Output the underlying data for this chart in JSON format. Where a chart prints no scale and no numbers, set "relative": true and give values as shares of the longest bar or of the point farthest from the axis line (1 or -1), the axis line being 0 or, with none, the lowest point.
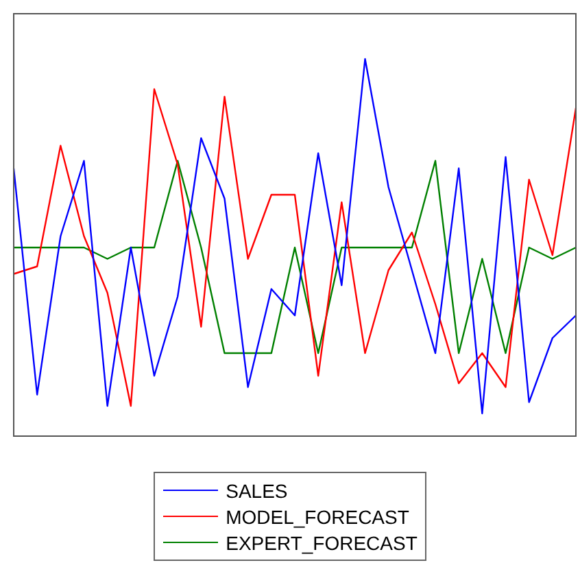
{
  "chart_data": {
    "type": "line",
    "relative": true,
    "legend": "bottom",
    "grid": false,
    "marker": "none",
    "line_style": "solid",
    "categories": [
      null,
      null,
      null,
      null,
      null,
      null,
      null,
      null,
      null,
      null,
      null,
      null,
      null,
      null,
      null,
      null,
      null,
      null,
      null,
      null,
      null,
      null,
      null,
      null,
      null
    ],
    "series": [
      {
        "name": "SALES",
        "color": "#0000ff",
        "values": [
          0.71,
          0.11,
          0.53,
          0.73,
          0.08,
          0.5,
          0.16,
          0.37,
          0.79,
          0.63,
          0.13,
          0.39,
          0.32,
          0.75,
          0.4,
          1,
          0.66,
          0.44,
          0.22,
          0.71,
          0.06,
          0.74,
          0.09,
          0.26,
          0.32
        ]
      },
      {
        "name": "MODEL_FORECAST",
        "color": "#ff0000",
        "values": [
          0.43,
          0.45,
          0.77,
          0.53,
          0.38,
          0.08,
          0.92,
          0.72,
          0.29,
          0.9,
          0.47,
          0.64,
          0.64,
          0.16,
          0.62,
          0.22,
          0.44,
          0.54,
          0.35,
          0.14,
          0.22,
          0.13,
          0.68,
          0.48,
          0.87
        ]
      },
      {
        "name": "EXPERT_FORECAST",
        "color": "#008000",
        "values": [
          0.5,
          0.5,
          0.5,
          0.5,
          0.47,
          0.5,
          0.5,
          0.73,
          0.5,
          0.22,
          0.22,
          0.22,
          0.5,
          0.22,
          0.5,
          0.5,
          0.5,
          0.5,
          0.73,
          0.22,
          0.47,
          0.22,
          0.5,
          0.47,
          0.5
        ]
      }
    ]
  }
}
